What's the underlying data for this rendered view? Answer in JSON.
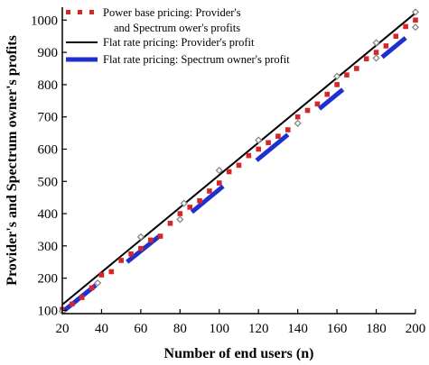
{
  "chart_data": {
    "type": "line",
    "xlabel": "Number of end users (n)",
    "ylabel": "Provider's and Spectrum owner's profits",
    "xlim": [
      20,
      200
    ],
    "ylim": [
      90,
      1040
    ],
    "xticks": [
      20,
      40,
      60,
      80,
      100,
      120,
      140,
      160,
      180,
      200
    ],
    "yticks": [
      100,
      200,
      300,
      400,
      500,
      600,
      700,
      800,
      900,
      1000
    ],
    "grid": false,
    "legend_position": "top-left",
    "series": [
      {
        "name": "Power base pricing: Provider's and Spectrum ower's profits",
        "legend_lines": [
          "Power base pricing: Provider's",
          "and Spectrum ower's profits"
        ],
        "style": "dotted",
        "color": "#d62728",
        "x": [
          20,
          25,
          30,
          35,
          40,
          45,
          50,
          55,
          60,
          65,
          70,
          75,
          80,
          85,
          90,
          95,
          100,
          105,
          110,
          115,
          120,
          125,
          130,
          135,
          140,
          145,
          150,
          155,
          160,
          165,
          170,
          175,
          180,
          185,
          190,
          195,
          200
        ],
        "y": [
          103,
          120,
          140,
          170,
          210,
          220,
          255,
          275,
          292,
          318,
          330,
          370,
          400,
          420,
          440,
          470,
          495,
          530,
          550,
          580,
          600,
          620,
          640,
          660,
          700,
          720,
          740,
          770,
          800,
          830,
          850,
          880,
          900,
          920,
          950,
          980,
          1000
        ]
      },
      {
        "name": "Flat rate pricing: Provider's profit",
        "style": "solid",
        "color": "#000000",
        "x": [
          20,
          200
        ],
        "y": [
          118,
          1022
        ]
      },
      {
        "name": "Flat rate pricing: Spectrum owner's profit",
        "style": "segments",
        "color": "#1f2fd0",
        "segments": [
          {
            "x": [
              20,
              37
            ],
            "y": [
              95,
              178
            ]
          },
          {
            "x": [
              53,
              70
            ],
            "y": [
              250,
              333
            ]
          },
          {
            "x": [
              86,
              102
            ],
            "y": [
              405,
              485
            ]
          },
          {
            "x": [
              119,
              135
            ],
            "y": [
              565,
              645
            ]
          },
          {
            "x": [
              151,
              163
            ],
            "y": [
              725,
              785
            ]
          },
          {
            "x": [
              183,
              195
            ],
            "y": [
              885,
              945
            ]
          }
        ]
      }
    ],
    "markers": {
      "grey_diamonds": {
        "color": "#888888",
        "points": [
          [
            20,
            97
          ],
          [
            38,
            185
          ],
          [
            60,
            328
          ],
          [
            80,
            382
          ],
          [
            82,
            432
          ],
          [
            100,
            534
          ],
          [
            120,
            628
          ],
          [
            140,
            680
          ],
          [
            160,
            826
          ],
          [
            180,
            882
          ],
          [
            180,
            930
          ],
          [
            200,
            978
          ],
          [
            200,
            1025
          ]
        ]
      }
    }
  }
}
